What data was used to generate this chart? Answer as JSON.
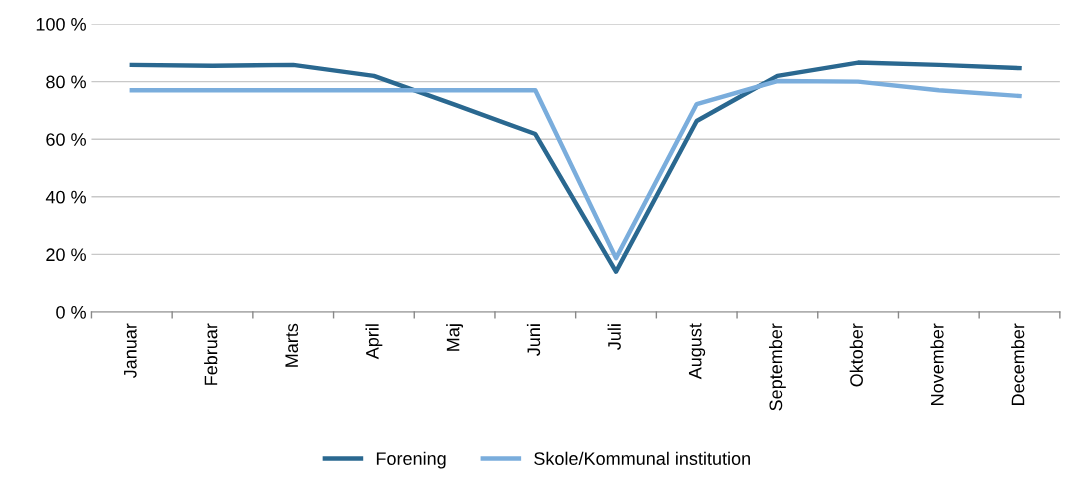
{
  "chart_data": {
    "type": "line",
    "categories": [
      "Januar",
      "Februar",
      "Marts",
      "April",
      "Maj",
      "Juni",
      "Juli",
      "August",
      "September",
      "Oktober",
      "November",
      "December"
    ],
    "series": [
      {
        "name": "Forening",
        "color": "#2a6890",
        "values": [
          85.8,
          85.5,
          85.8,
          82,
          72,
          61.8,
          14,
          66.3,
          82,
          86.6,
          85.8,
          84.7
        ]
      },
      {
        "name": "Skole/Kommunal institution",
        "color": "#7aaddc",
        "values": [
          77,
          77,
          77,
          77,
          77,
          77,
          18.7,
          72.2,
          80.2,
          80,
          77,
          75
        ]
      }
    ],
    "ylim": [
      0,
      100
    ],
    "yticks": [
      {
        "value": 0,
        "label": "0 %"
      },
      {
        "value": 20,
        "label": "20 %"
      },
      {
        "value": 40,
        "label": "40 %"
      },
      {
        "value": 60,
        "label": "60 %"
      },
      {
        "value": 80,
        "label": "80 %"
      },
      {
        "value": 100,
        "label": "100 %"
      }
    ],
    "grid": "y",
    "legend": "bottom",
    "marker": "none",
    "line_style": "solid"
  }
}
